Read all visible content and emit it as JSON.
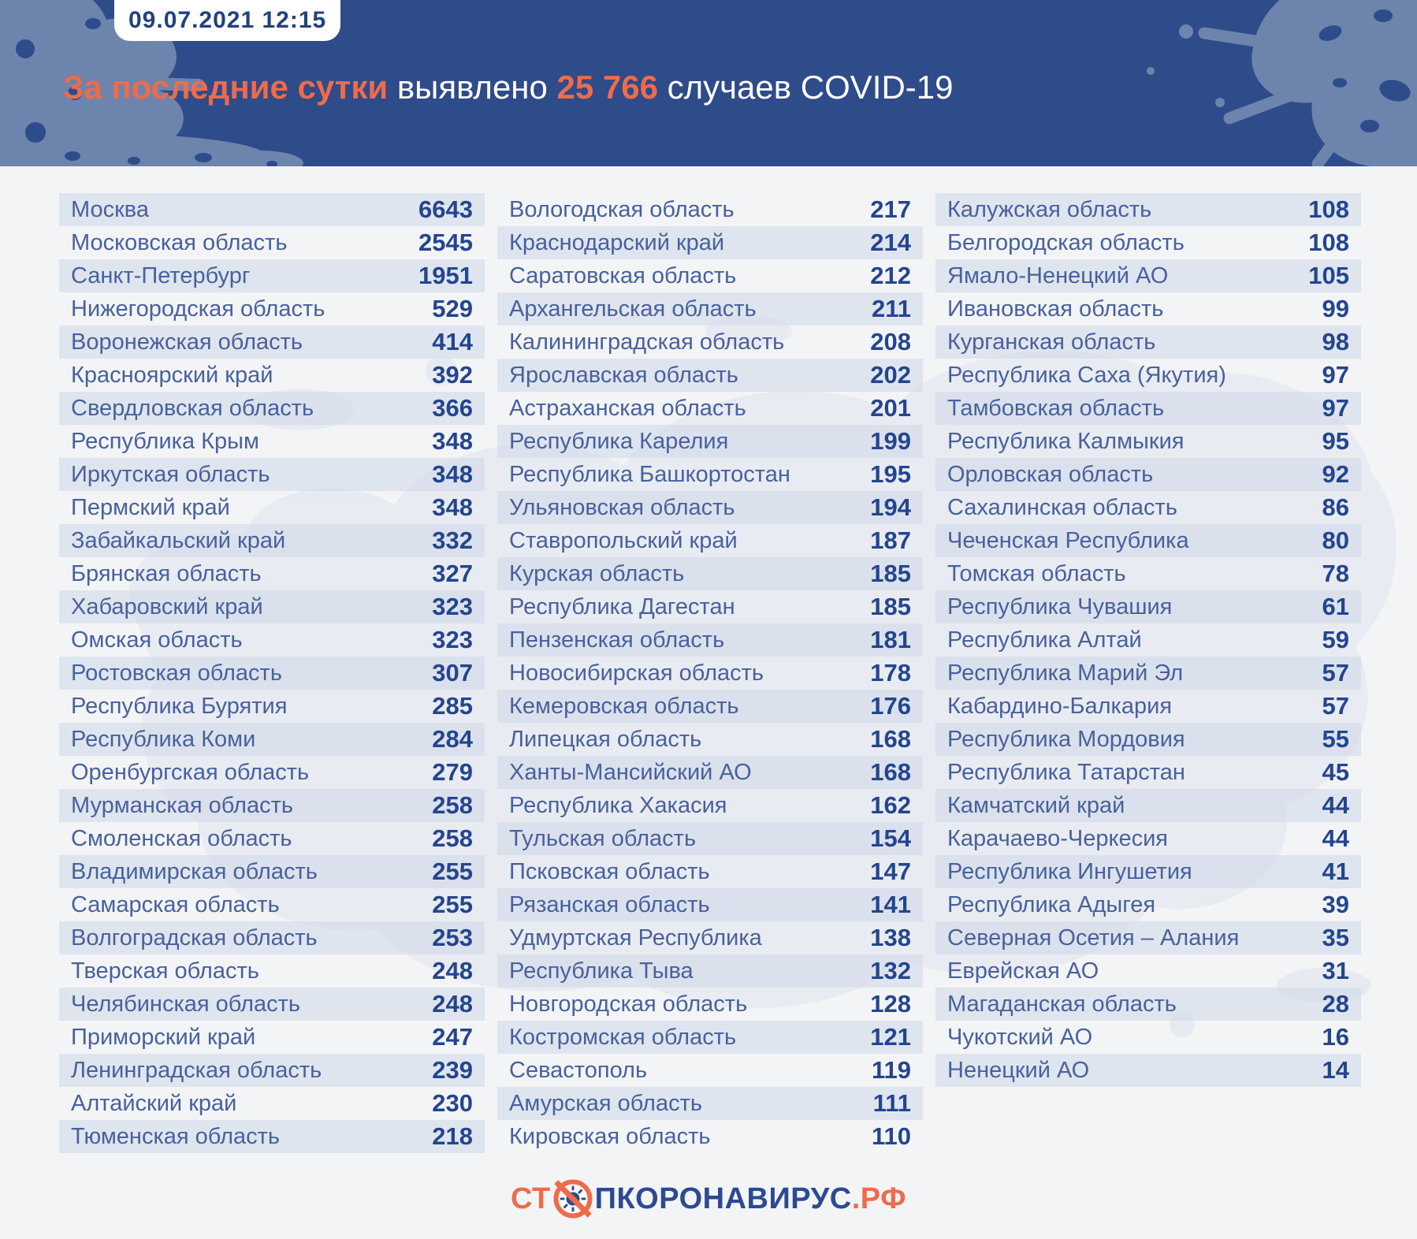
{
  "header": {
    "timestamp": "09.07.2021 12:15",
    "title": {
      "lead": "За последние сутки",
      "mid": " выявлено ",
      "number": "25 766",
      "tail": " случаев COVID-19"
    }
  },
  "footer": {
    "logo_prefix": "СТ",
    "logo_body": "ПКОРОНАВИРУС",
    "logo_suffix": ".РФ",
    "icon": "no-virus-icon"
  },
  "colors": {
    "header_bg": "#2e4b8a",
    "accent_orange": "#ee6b4b",
    "value_navy": "#24458e",
    "region_blue": "#48619d",
    "badge_text_navy": "#23407f",
    "stripe": "#e7ebf2",
    "page_bg": "#f3f4f6",
    "splat_light_blue": "#6d84ac",
    "logo_navy": "#2c4a92"
  },
  "chart_data": {
    "type": "table",
    "title": "За последние сутки выявлено 25 766 случаев COVID-19",
    "timestamp": "09.07.2021 12:15",
    "total_new_cases": 25766,
    "columns": [
      "region",
      "new_cases"
    ],
    "column_split": [
      29,
      29,
      27
    ],
    "stripe_rule": "continuous alternation across all columns, first row shaded",
    "regions": [
      {
        "name": "Москва",
        "value": 6643
      },
      {
        "name": "Московская область",
        "value": 2545
      },
      {
        "name": "Санкт-Петербург",
        "value": 1951
      },
      {
        "name": "Нижегородская область",
        "value": 529
      },
      {
        "name": "Воронежская область",
        "value": 414
      },
      {
        "name": "Красноярский край",
        "value": 392
      },
      {
        "name": "Свердловская область",
        "value": 366
      },
      {
        "name": "Республика Крым",
        "value": 348
      },
      {
        "name": "Иркутская область",
        "value": 348
      },
      {
        "name": "Пермский край",
        "value": 348
      },
      {
        "name": "Забайкальский край",
        "value": 332
      },
      {
        "name": "Брянская область",
        "value": 327
      },
      {
        "name": "Хабаровский край",
        "value": 323
      },
      {
        "name": "Омская область",
        "value": 323
      },
      {
        "name": "Ростовская область",
        "value": 307
      },
      {
        "name": "Республика Бурятия",
        "value": 285
      },
      {
        "name": "Республика Коми",
        "value": 284
      },
      {
        "name": "Оренбургская область",
        "value": 279
      },
      {
        "name": "Мурманская область",
        "value": 258
      },
      {
        "name": "Смоленская область",
        "value": 258
      },
      {
        "name": "Владимирская область",
        "value": 255
      },
      {
        "name": "Самарская область",
        "value": 255
      },
      {
        "name": "Волгоградская область",
        "value": 253
      },
      {
        "name": "Тверская область",
        "value": 248
      },
      {
        "name": "Челябинская область",
        "value": 248
      },
      {
        "name": "Приморский край",
        "value": 247
      },
      {
        "name": "Ленинградская область",
        "value": 239
      },
      {
        "name": "Алтайский край",
        "value": 230
      },
      {
        "name": "Тюменская область",
        "value": 218
      },
      {
        "name": "Вологодская область",
        "value": 217
      },
      {
        "name": "Краснодарский край",
        "value": 214
      },
      {
        "name": "Саратовская область",
        "value": 212
      },
      {
        "name": "Архангельская область",
        "value": 211
      },
      {
        "name": "Калининградская область",
        "value": 208
      },
      {
        "name": "Ярославская область",
        "value": 202
      },
      {
        "name": "Астраханская область",
        "value": 201
      },
      {
        "name": "Республика Карелия",
        "value": 199
      },
      {
        "name": "Республика Башкортостан",
        "value": 195
      },
      {
        "name": "Ульяновская область",
        "value": 194
      },
      {
        "name": "Ставропольский край",
        "value": 187
      },
      {
        "name": "Курская область",
        "value": 185
      },
      {
        "name": "Республика Дагестан",
        "value": 185
      },
      {
        "name": "Пензенская область",
        "value": 181
      },
      {
        "name": "Новосибирская область",
        "value": 178
      },
      {
        "name": "Кемеровская область",
        "value": 176
      },
      {
        "name": "Липецкая область",
        "value": 168
      },
      {
        "name": "Ханты-Мансийский АО",
        "value": 168
      },
      {
        "name": "Республика Хакасия",
        "value": 162
      },
      {
        "name": "Тульская область",
        "value": 154
      },
      {
        "name": "Псковская область",
        "value": 147
      },
      {
        "name": "Рязанская область",
        "value": 141
      },
      {
        "name": "Удмуртская Республика",
        "value": 138
      },
      {
        "name": "Республика Тыва",
        "value": 132
      },
      {
        "name": "Новгородская область",
        "value": 128
      },
      {
        "name": "Костромская область",
        "value": 121
      },
      {
        "name": "Севастополь",
        "value": 119
      },
      {
        "name": "Амурская область",
        "value": 111
      },
      {
        "name": "Кировская область",
        "value": 110
      },
      {
        "name": "Калужская область",
        "value": 108
      },
      {
        "name": "Белгородская область",
        "value": 108
      },
      {
        "name": "Ямало-Ненецкий АО",
        "value": 105
      },
      {
        "name": "Ивановская область",
        "value": 99
      },
      {
        "name": "Курганская область",
        "value": 98
      },
      {
        "name": "Республика Саха (Якутия)",
        "value": 97
      },
      {
        "name": "Тамбовская область",
        "value": 97
      },
      {
        "name": "Республика Калмыкия",
        "value": 95
      },
      {
        "name": "Орловская область",
        "value": 92
      },
      {
        "name": "Сахалинская область",
        "value": 86
      },
      {
        "name": "Чеченская Республика",
        "value": 80
      },
      {
        "name": "Томская область",
        "value": 78
      },
      {
        "name": "Республика Чувашия",
        "value": 61
      },
      {
        "name": "Республика Алтай",
        "value": 59
      },
      {
        "name": "Республика Марий Эл",
        "value": 57
      },
      {
        "name": "Кабардино-Балкария",
        "value": 57
      },
      {
        "name": "Республика Мордовия",
        "value": 55
      },
      {
        "name": "Республика Татарстан",
        "value": 45
      },
      {
        "name": "Камчатский край",
        "value": 44
      },
      {
        "name": "Карачаево-Черкесия",
        "value": 44
      },
      {
        "name": "Республика Ингушетия",
        "value": 41
      },
      {
        "name": "Республика Адыгея",
        "value": 39
      },
      {
        "name": "Северная Осетия – Алания",
        "value": 35
      },
      {
        "name": "Еврейская АО",
        "value": 31
      },
      {
        "name": "Магаданская область",
        "value": 28
      },
      {
        "name": "Чукотский АО",
        "value": 16
      },
      {
        "name": "Ненецкий АО",
        "value": 14
      }
    ]
  }
}
